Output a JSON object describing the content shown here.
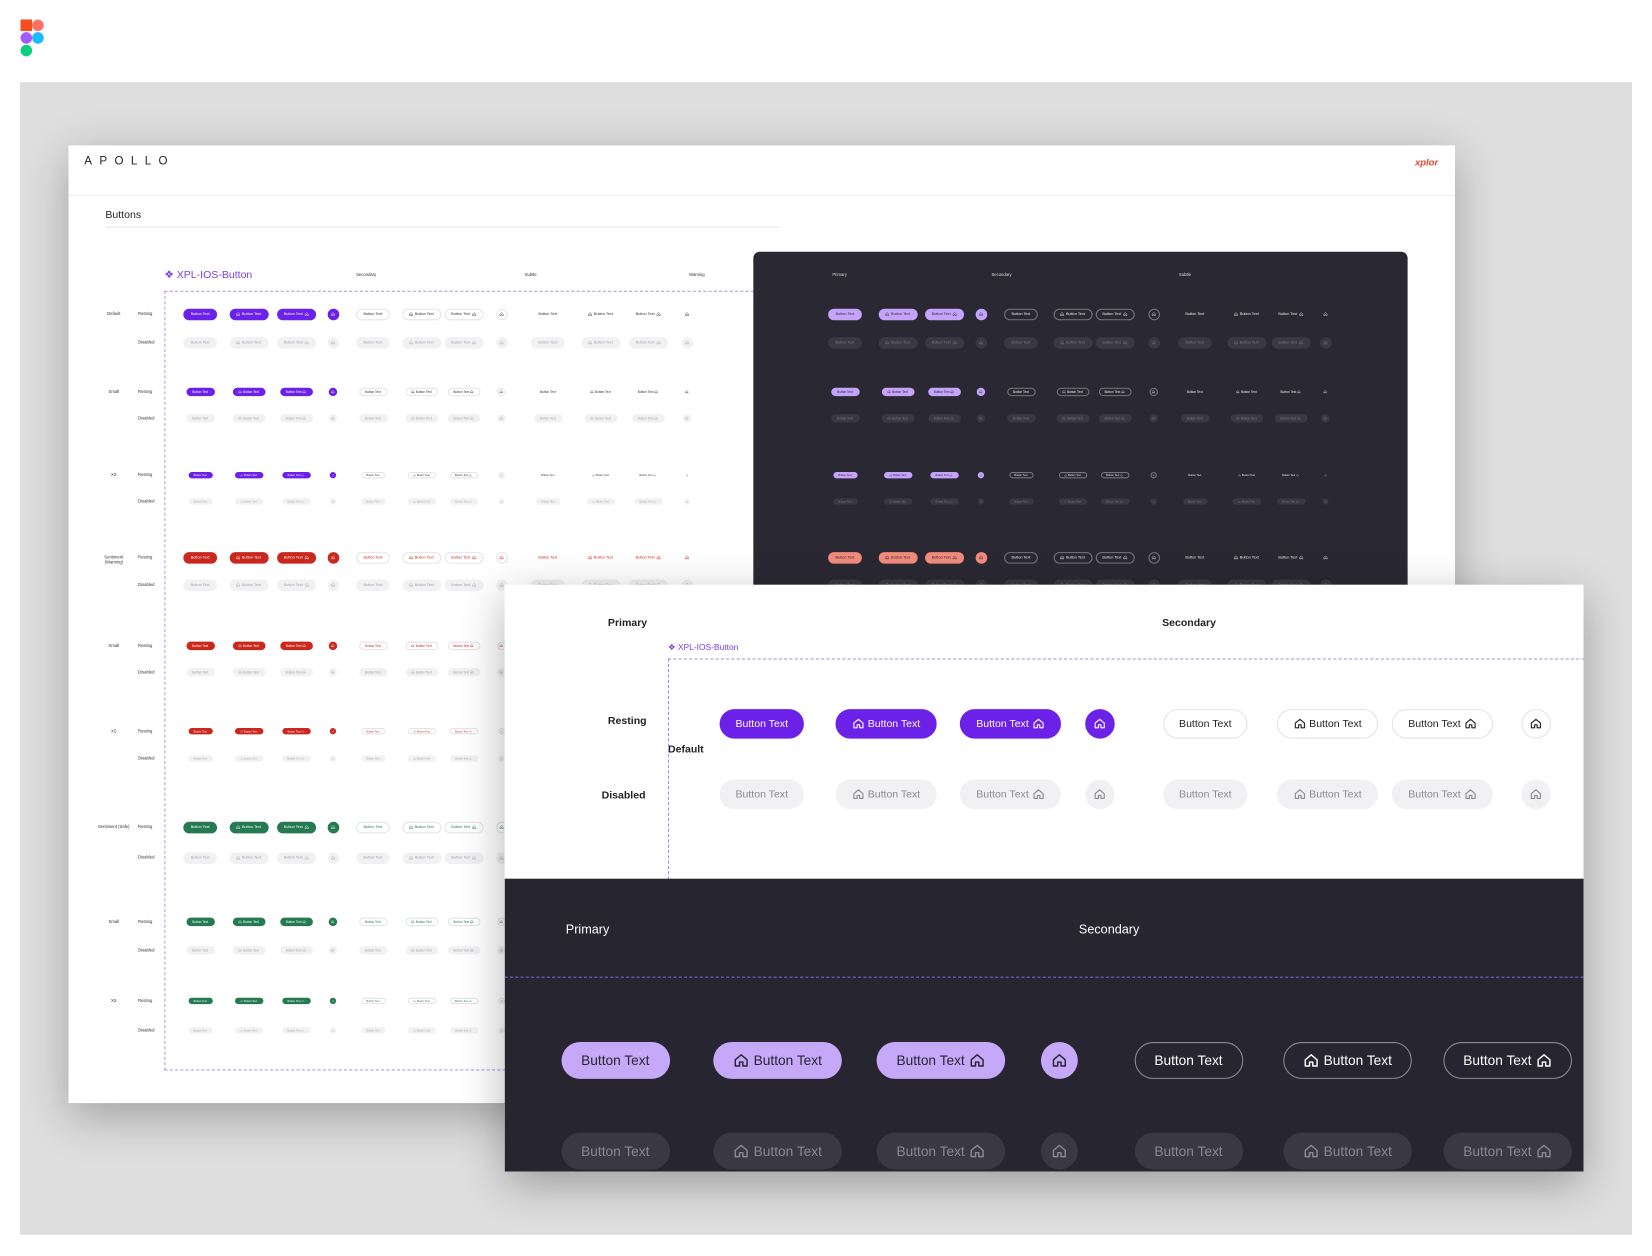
{
  "document": {
    "brand": "APOLLO",
    "partner": "xplor",
    "section_title": "Buttons",
    "component_name": "XPL-IOS-Button",
    "light_headers": [
      "Secondary",
      "Subtle",
      "Warning"
    ],
    "dark_headers": [
      "Primary",
      "Secondary",
      "Subtle"
    ],
    "button_label": "Button Text",
    "rows": [
      {
        "size": "Default",
        "states": [
          "Resting",
          "Disabled"
        ],
        "color": "#6b21e8",
        "secondary_color": "#333333",
        "dark_color": "#c5a3fb"
      },
      {
        "size": "Small",
        "states": [
          "Resting",
          "Disabled"
        ],
        "color": "#6b21e8",
        "secondary_color": "#333333",
        "dark_color": "#c5a3fb"
      },
      {
        "size": "XS",
        "states": [
          "Resting",
          "Disabled"
        ],
        "color": "#6b21e8",
        "secondary_color": "#333333",
        "dark_color": "#c5a3fb"
      },
      {
        "size": "Sentiment (Warning)",
        "states": [
          "Resting",
          "Disabled"
        ],
        "color": "#c8281e",
        "secondary_color": "#c8281e",
        "dark_color": "#f28b7b"
      },
      {
        "size": "Small",
        "states": [
          "Resting",
          "Disabled"
        ],
        "color": "#c8281e",
        "secondary_color": "#c8281e",
        "dark_color": "#f28b7b"
      },
      {
        "size": "XS",
        "states": [
          "Resting",
          "Disabled"
        ],
        "color": "#c8281e",
        "secondary_color": "#c8281e",
        "dark_color": "#f28b7b"
      },
      {
        "size": "Sentiment (Safe)",
        "states": [
          "Resting",
          "Disabled"
        ],
        "color": "#267a52",
        "secondary_color": "#267a52",
        "dark_color": "#7fd1a8"
      },
      {
        "size": "Small",
        "states": [
          "Resting",
          "Disabled"
        ],
        "color": "#267a52",
        "secondary_color": "#267a52",
        "dark_color": "#7fd1a8"
      },
      {
        "size": "XS",
        "states": [
          "Resting",
          "Disabled"
        ],
        "color": "#267a52",
        "secondary_color": "#267a52",
        "dark_color": "#7fd1a8"
      }
    ]
  },
  "zoom": {
    "light_headers": [
      "Primary",
      "Secondary"
    ],
    "component_name": "XPL-IOS-Button",
    "size": "Default",
    "states": [
      "Resting",
      "Disabled"
    ],
    "dark_headers": [
      "Primary",
      "Secondary"
    ],
    "button_label": "Button Text",
    "primary_color": "#6b21e8",
    "dark_primary_color": "#c5a8f8"
  }
}
